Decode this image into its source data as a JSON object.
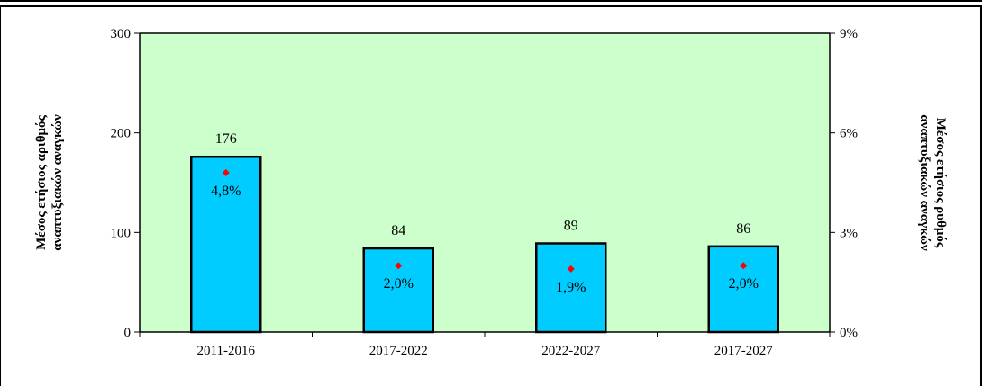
{
  "chart_data": {
    "type": "bar",
    "categories": [
      "2011-2016",
      "2017-2022",
      "2022-2027",
      "2017-2027"
    ],
    "series": [
      {
        "kind": "bar",
        "axis": "left",
        "values": [
          176,
          84,
          89,
          86
        ],
        "labels": [
          "176",
          "84",
          "89",
          "86"
        ],
        "color": "#00ccff"
      },
      {
        "kind": "marker",
        "axis": "right",
        "values": [
          4.8,
          2.0,
          1.9,
          2.0
        ],
        "labels": [
          "4,8%",
          "2,0%",
          "1,9%",
          "2,0%"
        ],
        "color": "#ff0000"
      }
    ],
    "ylabel_left": [
      "Μέσος ετήσιος αριθμός",
      "αναπτυξιακών αναγκών"
    ],
    "ylabel_right": [
      "Μέσος ετήσιος ρυθμός",
      "αναπτυξιακών αναγκών"
    ],
    "ylim_left": [
      0,
      300
    ],
    "ylim_right": [
      0,
      9
    ],
    "yticks_left": [
      "0",
      "100",
      "200",
      "300"
    ],
    "yticks_right": [
      "0%",
      "3%",
      "6%",
      "9%"
    ],
    "plot_background": "#ccffcc",
    "grid": false,
    "legend": "none"
  }
}
